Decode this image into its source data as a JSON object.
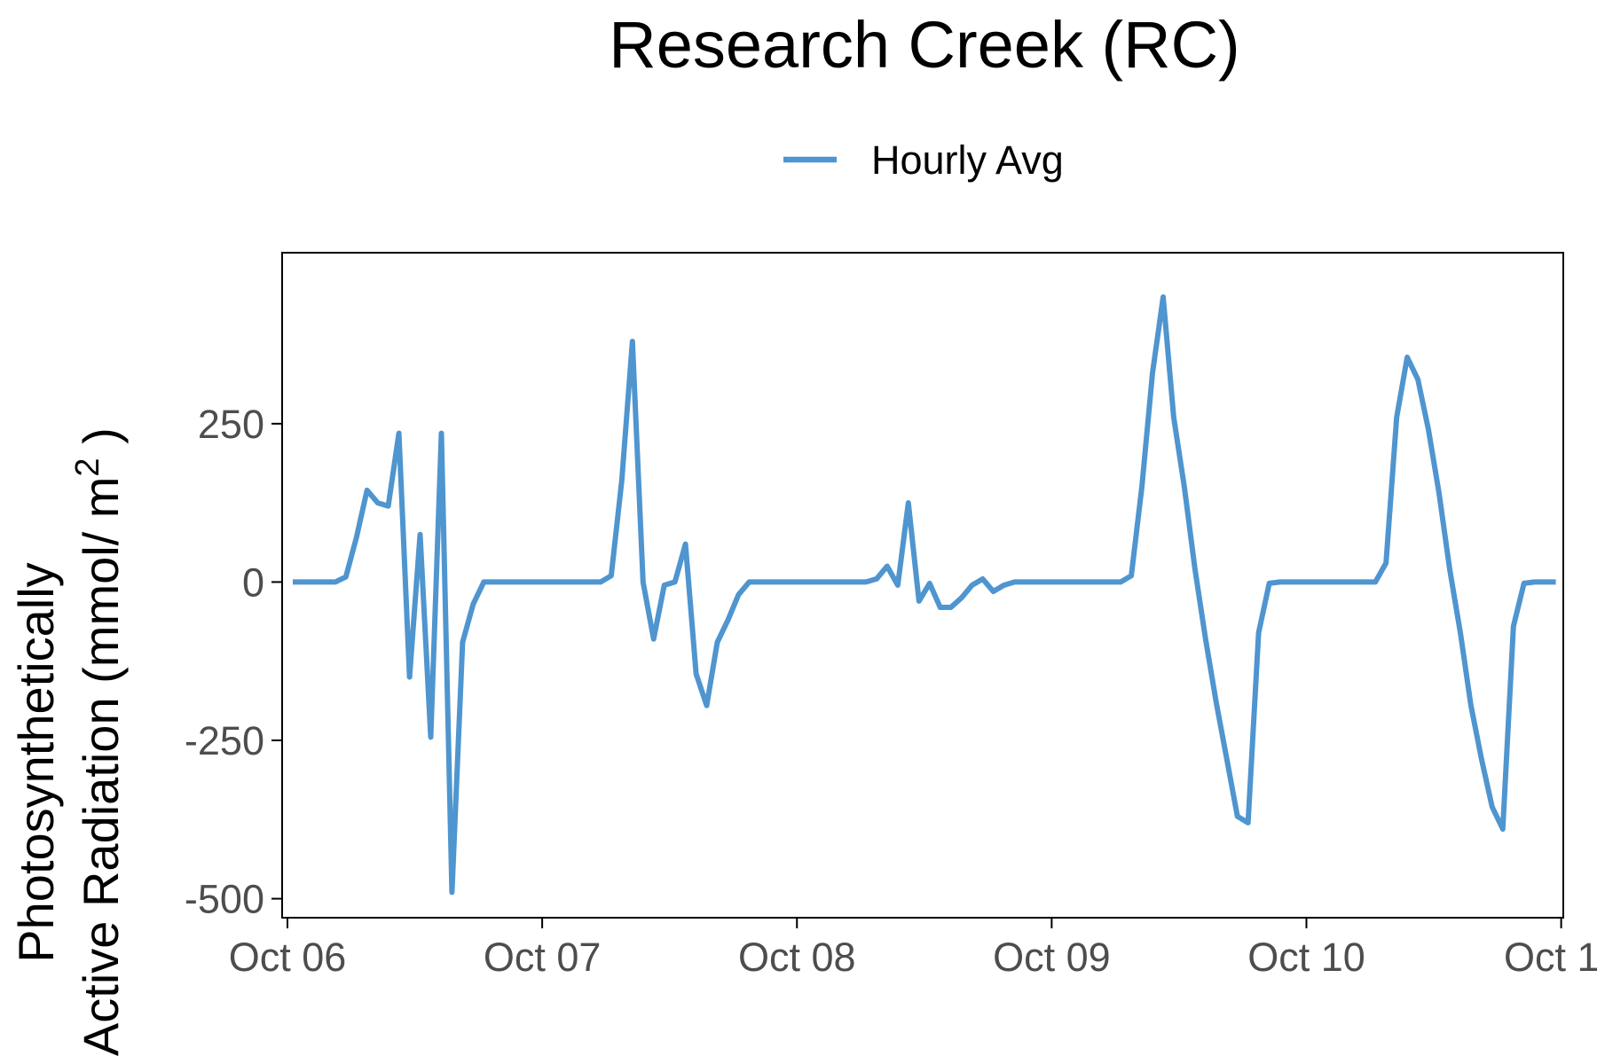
{
  "colors": {
    "series_line": "#4f95cf",
    "frame": "#000000",
    "tick_text": "#4d4d4d",
    "background": "#ffffff"
  },
  "chart_data": {
    "type": "line",
    "title": "Research Creek (RC)",
    "ylabel_line1": "Photosynthetically",
    "ylabel_line2_prefix": "∆ Active Radiation (mmol/ m",
    "ylabel_superscript": "2",
    "ylabel_line2_suffix": " )",
    "xlabel": "",
    "legend_position": "top",
    "grid": false,
    "x_type": "date",
    "xlim": [
      "2019-10-05T23:30",
      "2019-10-11T00:12"
    ],
    "ylim": [
      -530,
      520
    ],
    "x_ticks": [
      {
        "value": "2019-10-06T00:00",
        "label": "Oct 06"
      },
      {
        "value": "2019-10-07T00:00",
        "label": "Oct 07"
      },
      {
        "value": "2019-10-08T00:00",
        "label": "Oct 08"
      },
      {
        "value": "2019-10-09T00:00",
        "label": "Oct 09"
      },
      {
        "value": "2019-10-10T00:00",
        "label": "Oct 10"
      },
      {
        "value": "2019-10-11T00:00",
        "label": "Oct 11"
      }
    ],
    "y_ticks": [
      {
        "value": 250,
        "label": "250"
      },
      {
        "value": 0,
        "label": "0"
      },
      {
        "value": -250,
        "label": "-250"
      },
      {
        "value": -500,
        "label": "-500"
      }
    ],
    "series": [
      {
        "name": "Hourly Avg",
        "points": [
          {
            "x": "2019-10-06T00:30",
            "y": 0
          },
          {
            "x": "2019-10-06T01:30",
            "y": 0
          },
          {
            "x": "2019-10-06T02:30",
            "y": 0
          },
          {
            "x": "2019-10-06T03:30",
            "y": 0
          },
          {
            "x": "2019-10-06T04:30",
            "y": 0
          },
          {
            "x": "2019-10-06T05:30",
            "y": 8
          },
          {
            "x": "2019-10-06T06:30",
            "y": 70
          },
          {
            "x": "2019-10-06T07:30",
            "y": 145
          },
          {
            "x": "2019-10-06T08:30",
            "y": 125
          },
          {
            "x": "2019-10-06T09:30",
            "y": 120
          },
          {
            "x": "2019-10-06T10:30",
            "y": 235
          },
          {
            "x": "2019-10-06T11:30",
            "y": -150
          },
          {
            "x": "2019-10-06T12:30",
            "y": 75
          },
          {
            "x": "2019-10-06T13:30",
            "y": -245
          },
          {
            "x": "2019-10-06T14:30",
            "y": 235
          },
          {
            "x": "2019-10-06T15:30",
            "y": -490
          },
          {
            "x": "2019-10-06T16:30",
            "y": -95
          },
          {
            "x": "2019-10-06T17:30",
            "y": -35
          },
          {
            "x": "2019-10-06T18:30",
            "y": 0
          },
          {
            "x": "2019-10-06T19:30",
            "y": 0
          },
          {
            "x": "2019-10-06T20:30",
            "y": 0
          },
          {
            "x": "2019-10-06T21:30",
            "y": 0
          },
          {
            "x": "2019-10-06T22:30",
            "y": 0
          },
          {
            "x": "2019-10-06T23:30",
            "y": 0
          },
          {
            "x": "2019-10-07T00:30",
            "y": 0
          },
          {
            "x": "2019-10-07T01:30",
            "y": 0
          },
          {
            "x": "2019-10-07T02:30",
            "y": 0
          },
          {
            "x": "2019-10-07T03:30",
            "y": 0
          },
          {
            "x": "2019-10-07T04:30",
            "y": 0
          },
          {
            "x": "2019-10-07T05:30",
            "y": 0
          },
          {
            "x": "2019-10-07T06:30",
            "y": 10
          },
          {
            "x": "2019-10-07T07:30",
            "y": 160
          },
          {
            "x": "2019-10-07T08:30",
            "y": 380
          },
          {
            "x": "2019-10-07T09:30",
            "y": 0
          },
          {
            "x": "2019-10-07T10:30",
            "y": -90
          },
          {
            "x": "2019-10-07T11:30",
            "y": -5
          },
          {
            "x": "2019-10-07T12:30",
            "y": 0
          },
          {
            "x": "2019-10-07T13:30",
            "y": 60
          },
          {
            "x": "2019-10-07T14:30",
            "y": -145
          },
          {
            "x": "2019-10-07T15:30",
            "y": -195
          },
          {
            "x": "2019-10-07T16:30",
            "y": -95
          },
          {
            "x": "2019-10-07T17:30",
            "y": -60
          },
          {
            "x": "2019-10-07T18:30",
            "y": -20
          },
          {
            "x": "2019-10-07T19:30",
            "y": 0
          },
          {
            "x": "2019-10-07T20:30",
            "y": 0
          },
          {
            "x": "2019-10-07T21:30",
            "y": 0
          },
          {
            "x": "2019-10-07T22:30",
            "y": 0
          },
          {
            "x": "2019-10-07T23:30",
            "y": 0
          },
          {
            "x": "2019-10-08T00:30",
            "y": 0
          },
          {
            "x": "2019-10-08T01:30",
            "y": 0
          },
          {
            "x": "2019-10-08T02:30",
            "y": 0
          },
          {
            "x": "2019-10-08T03:30",
            "y": 0
          },
          {
            "x": "2019-10-08T04:30",
            "y": 0
          },
          {
            "x": "2019-10-08T05:30",
            "y": 0
          },
          {
            "x": "2019-10-08T06:30",
            "y": 0
          },
          {
            "x": "2019-10-08T07:30",
            "y": 5
          },
          {
            "x": "2019-10-08T08:30",
            "y": 25
          },
          {
            "x": "2019-10-08T09:30",
            "y": -5
          },
          {
            "x": "2019-10-08T10:30",
            "y": 125
          },
          {
            "x": "2019-10-08T11:30",
            "y": -30
          },
          {
            "x": "2019-10-08T12:30",
            "y": -2
          },
          {
            "x": "2019-10-08T13:30",
            "y": -40
          },
          {
            "x": "2019-10-08T14:30",
            "y": -40
          },
          {
            "x": "2019-10-08T15:30",
            "y": -25
          },
          {
            "x": "2019-10-08T16:30",
            "y": -5
          },
          {
            "x": "2019-10-08T17:30",
            "y": 5
          },
          {
            "x": "2019-10-08T18:30",
            "y": -15
          },
          {
            "x": "2019-10-08T19:30",
            "y": -5
          },
          {
            "x": "2019-10-08T20:30",
            "y": 0
          },
          {
            "x": "2019-10-08T21:30",
            "y": 0
          },
          {
            "x": "2019-10-08T22:30",
            "y": 0
          },
          {
            "x": "2019-10-08T23:30",
            "y": 0
          },
          {
            "x": "2019-10-09T00:30",
            "y": 0
          },
          {
            "x": "2019-10-09T01:30",
            "y": 0
          },
          {
            "x": "2019-10-09T02:30",
            "y": 0
          },
          {
            "x": "2019-10-09T03:30",
            "y": 0
          },
          {
            "x": "2019-10-09T04:30",
            "y": 0
          },
          {
            "x": "2019-10-09T05:30",
            "y": 0
          },
          {
            "x": "2019-10-09T06:30",
            "y": 0
          },
          {
            "x": "2019-10-09T07:30",
            "y": 10
          },
          {
            "x": "2019-10-09T08:30",
            "y": 150
          },
          {
            "x": "2019-10-09T09:30",
            "y": 330
          },
          {
            "x": "2019-10-09T10:30",
            "y": 450
          },
          {
            "x": "2019-10-09T11:30",
            "y": 260
          },
          {
            "x": "2019-10-09T12:30",
            "y": 150
          },
          {
            "x": "2019-10-09T13:30",
            "y": 20
          },
          {
            "x": "2019-10-09T14:30",
            "y": -90
          },
          {
            "x": "2019-10-09T15:30",
            "y": -190
          },
          {
            "x": "2019-10-09T16:30",
            "y": -280
          },
          {
            "x": "2019-10-09T17:30",
            "y": -370
          },
          {
            "x": "2019-10-09T18:30",
            "y": -380
          },
          {
            "x": "2019-10-09T19:30",
            "y": -80
          },
          {
            "x": "2019-10-09T20:30",
            "y": -2
          },
          {
            "x": "2019-10-09T21:30",
            "y": 0
          },
          {
            "x": "2019-10-09T22:30",
            "y": 0
          },
          {
            "x": "2019-10-09T23:30",
            "y": 0
          },
          {
            "x": "2019-10-10T00:30",
            "y": 0
          },
          {
            "x": "2019-10-10T01:30",
            "y": 0
          },
          {
            "x": "2019-10-10T02:30",
            "y": 0
          },
          {
            "x": "2019-10-10T03:30",
            "y": 0
          },
          {
            "x": "2019-10-10T04:30",
            "y": 0
          },
          {
            "x": "2019-10-10T05:30",
            "y": 0
          },
          {
            "x": "2019-10-10T06:30",
            "y": 0
          },
          {
            "x": "2019-10-10T07:30",
            "y": 30
          },
          {
            "x": "2019-10-10T08:30",
            "y": 260
          },
          {
            "x": "2019-10-10T09:30",
            "y": 355
          },
          {
            "x": "2019-10-10T10:30",
            "y": 320
          },
          {
            "x": "2019-10-10T11:30",
            "y": 240
          },
          {
            "x": "2019-10-10T12:30",
            "y": 140
          },
          {
            "x": "2019-10-10T13:30",
            "y": 20
          },
          {
            "x": "2019-10-10T14:30",
            "y": -80
          },
          {
            "x": "2019-10-10T15:30",
            "y": -195
          },
          {
            "x": "2019-10-10T16:30",
            "y": -280
          },
          {
            "x": "2019-10-10T17:30",
            "y": -355
          },
          {
            "x": "2019-10-10T18:30",
            "y": -390
          },
          {
            "x": "2019-10-10T19:30",
            "y": -70
          },
          {
            "x": "2019-10-10T20:30",
            "y": -2
          },
          {
            "x": "2019-10-10T21:30",
            "y": 0
          },
          {
            "x": "2019-10-10T22:30",
            "y": 0
          },
          {
            "x": "2019-10-10T23:30",
            "y": 0
          }
        ]
      }
    ]
  }
}
